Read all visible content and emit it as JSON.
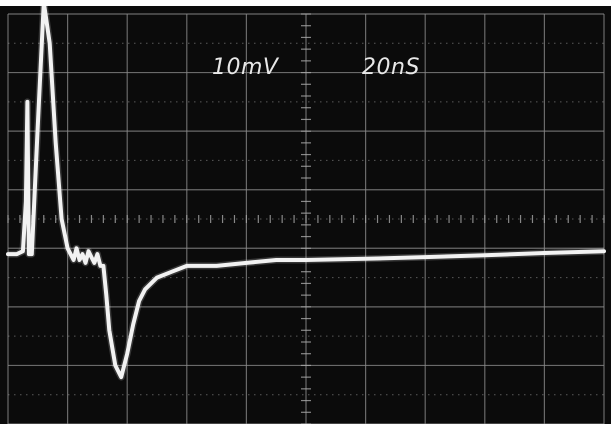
{
  "chart_data": {
    "type": "line",
    "vertical_scale": "10mV",
    "time_scale": "20nS",
    "divisions": {
      "x": 10,
      "y": 7
    },
    "grid": true,
    "xlim": [
      0,
      200
    ],
    "ylim": [
      -30,
      40
    ],
    "x_unit": "nS",
    "y_unit": "mV",
    "series": [
      {
        "x": [
          0,
          3,
          5,
          6,
          6.5,
          7,
          8,
          10,
          12,
          14,
          16,
          18,
          20,
          21,
          22,
          23,
          24,
          25,
          26,
          27,
          28,
          29,
          30,
          31,
          32,
          33,
          34,
          36,
          38,
          40,
          42,
          44,
          46,
          50,
          55,
          60,
          70,
          80,
          90,
          100,
          120,
          140,
          160,
          180,
          200
        ],
        "y": [
          -1,
          -1,
          -0.5,
          8,
          25,
          -1,
          -1,
          21,
          42,
          35,
          18,
          5,
          0,
          -1,
          -2,
          0,
          -2,
          -1,
          -2.5,
          -0.5,
          -1.5,
          -2.5,
          -1,
          -3,
          -3,
          -8,
          -14,
          -20,
          -22,
          -18,
          -13,
          -9,
          -7,
          -5,
          -4,
          -3,
          -3,
          -2.5,
          -2,
          -2,
          -1.8,
          -1.5,
          -1.2,
          -0.8,
          -0.5
        ]
      }
    ]
  }
}
